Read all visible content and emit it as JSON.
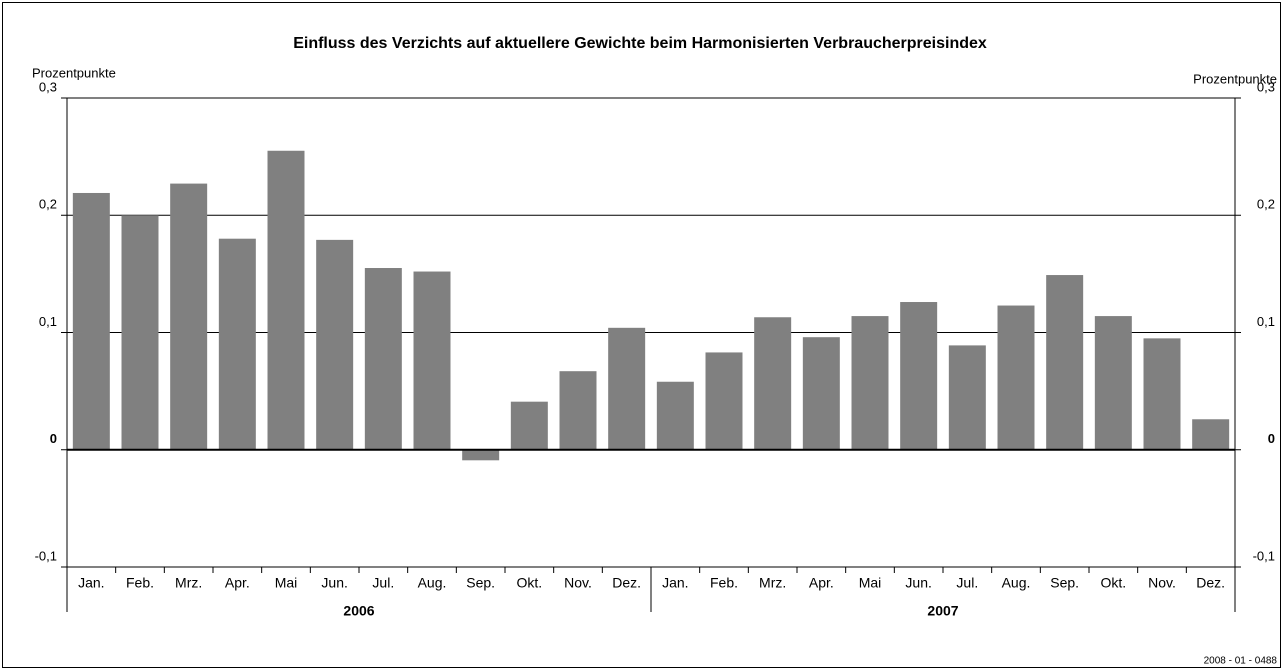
{
  "chart_data": {
    "type": "bar",
    "title": "Einfluss des Verzichts auf aktuellere Gewichte beim Harmonisierten Verbraucherpreisindex",
    "y_label": "Prozentpunkte",
    "y2_label": "Prozentpunkte",
    "categories": [
      "Jan.",
      "Feb.",
      "Mrz.",
      "Apr.",
      "Mai",
      "Jun.",
      "Jul.",
      "Aug.",
      "Sep.",
      "Okt.",
      "Nov.",
      "Dez.",
      "Jan.",
      "Feb.",
      "Mrz.",
      "Apr.",
      "Mai",
      "Jun.",
      "Jul.",
      "Aug.",
      "Sep.",
      "Okt.",
      "Nov.",
      "Dez."
    ],
    "groups": [
      "2006",
      "2007"
    ],
    "values": [
      0.219,
      0.2,
      0.227,
      0.18,
      0.255,
      0.179,
      0.155,
      0.152,
      -0.009,
      0.041,
      0.067,
      0.104,
      0.058,
      0.083,
      0.113,
      0.096,
      0.114,
      0.126,
      0.089,
      0.123,
      0.149,
      0.114,
      0.095,
      0.026
    ],
    "color": "#808080",
    "ylim": [
      -0.1,
      0.3
    ],
    "yticks": [
      {
        "value": -0.1,
        "label": "-0,1"
      },
      0,
      {
        "value": 0.1,
        "label": "0,1"
      },
      {
        "value": 0.2,
        "label": "0,2"
      },
      {
        "value": 0.3,
        "label": "0,3"
      }
    ],
    "grid": true,
    "footnote": "2008 - 01 - 0488"
  }
}
